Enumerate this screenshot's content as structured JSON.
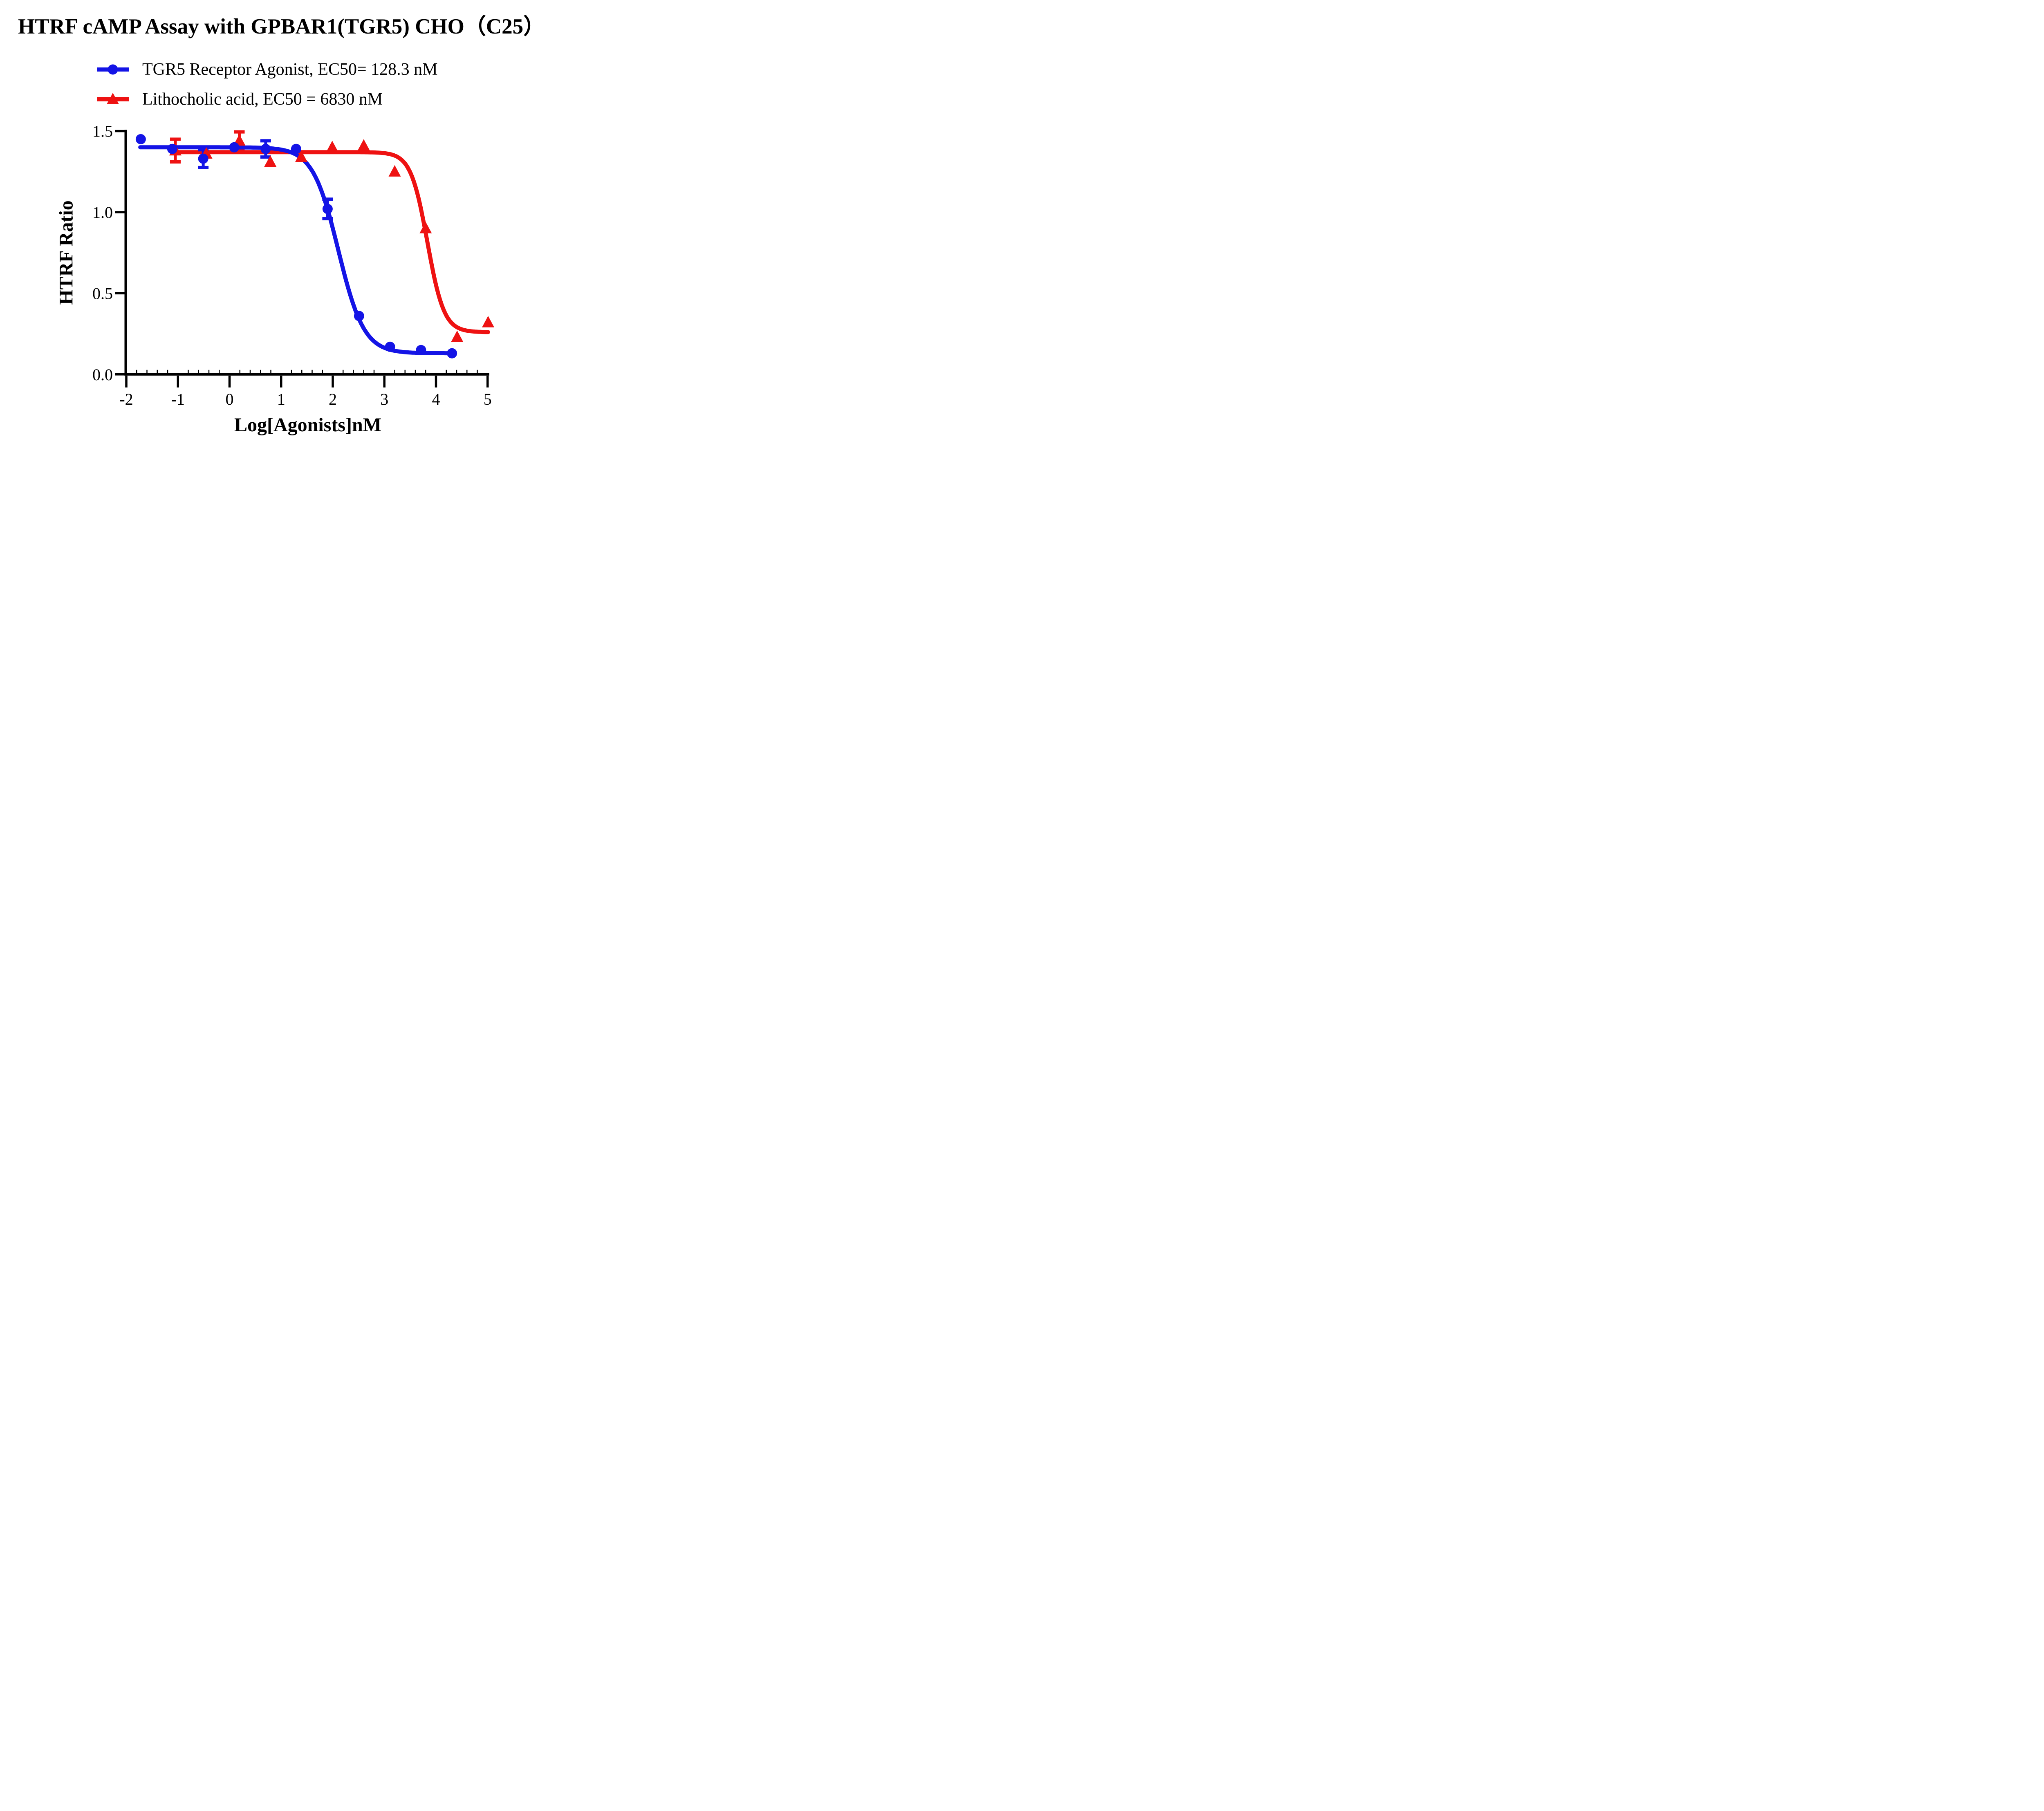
{
  "title": "HTRF cAMP Assay with GPBAR1(TGR5) CHO（C25）",
  "colors": {
    "series_blue": "#1414E6",
    "series_red": "#EE1212",
    "text": "#000000",
    "background": "#FFFFFF"
  },
  "legend": {
    "items": [
      {
        "label": "TGR5 Receptor Agonist, EC50= 128.3 nM",
        "marker": "circle",
        "color": "#1414E6"
      },
      {
        "label": "Lithocholic acid, EC50 = 6830 nM",
        "marker": "triangle",
        "color": "#EE1212"
      }
    ]
  },
  "chart_data": {
    "type": "scatter",
    "title": "HTRF cAMP Assay with GPBAR1(TGR5) CHO（C25）",
    "xlabel": "Log[Agonists]nM",
    "ylabel": "HTRF Ratio",
    "xlim": [
      -2,
      5.05
    ],
    "ylim": [
      0,
      1.5
    ],
    "grid": false,
    "legend_position": "top-left",
    "x_ticks": [
      {
        "v": -2,
        "label": "-2"
      },
      {
        "v": -1,
        "label": "-1"
      },
      {
        "v": 0,
        "label": "0"
      },
      {
        "v": 1,
        "label": "1"
      },
      {
        "v": 2,
        "label": "2"
      },
      {
        "v": 3,
        "label": "3"
      },
      {
        "v": 4,
        "label": "4"
      },
      {
        "v": 5,
        "label": "5"
      }
    ],
    "y_ticks": [
      {
        "v": 0,
        "label": "0.0"
      },
      {
        "v": 0.5,
        "label": "0.5"
      },
      {
        "v": 1,
        "label": "1.0"
      },
      {
        "v": 1.5,
        "label": "1.5"
      }
    ],
    "x_minor_tick_step": 0.2,
    "series": [
      {
        "name": "TGR5 Receptor Agonist",
        "ec50_label": "EC50= 128.3 nM",
        "ec50_nM": 128.3,
        "marker": "circle",
        "color": "#1414E6",
        "points": [
          {
            "x": -1.72,
            "y": 1.45,
            "err": 0
          },
          {
            "x": -1.11,
            "y": 1.39,
            "err": 0
          },
          {
            "x": -0.51,
            "y": 1.33,
            "err": 0.055
          },
          {
            "x": 0.09,
            "y": 1.4,
            "err": 0
          },
          {
            "x": 0.7,
            "y": 1.39,
            "err": 0.05
          },
          {
            "x": 1.29,
            "y": 1.39,
            "err": 0
          },
          {
            "x": 1.9,
            "y": 1.02,
            "err": 0.06
          },
          {
            "x": 2.51,
            "y": 0.36,
            "err": 0
          },
          {
            "x": 3.11,
            "y": 0.17,
            "err": 0
          },
          {
            "x": 3.71,
            "y": 0.15,
            "err": 0
          },
          {
            "x": 4.31,
            "y": 0.13,
            "err": 0
          }
        ],
        "fit": {
          "model": "4PL",
          "top": 1.4,
          "bottom": 0.13,
          "logEC50": 2.108,
          "hill": 1.75,
          "x_start": -1.73,
          "x_end": 4.36
        }
      },
      {
        "name": "Lithocholic acid",
        "ec50_label": "EC50 = 6830 nM",
        "ec50_nM": 6830,
        "marker": "triangle",
        "color": "#EE1212",
        "points": [
          {
            "x": -1.05,
            "y": 1.38,
            "err": 0.07
          },
          {
            "x": -0.45,
            "y": 1.36,
            "err": 0
          },
          {
            "x": 0.19,
            "y": 1.44,
            "err": 0.055
          },
          {
            "x": 0.79,
            "y": 1.31,
            "err": 0
          },
          {
            "x": 1.39,
            "y": 1.34,
            "err": 0
          },
          {
            "x": 1.99,
            "y": 1.4,
            "err": 0
          },
          {
            "x": 2.6,
            "y": 1.41,
            "err": 0
          },
          {
            "x": 3.2,
            "y": 1.25,
            "err": 0
          },
          {
            "x": 3.8,
            "y": 0.9,
            "err": 0
          },
          {
            "x": 4.41,
            "y": 0.23,
            "err": 0
          },
          {
            "x": 5.01,
            "y": 0.32,
            "err": 0
          }
        ],
        "fit": {
          "model": "4PL",
          "top": 1.37,
          "bottom": 0.26,
          "logEC50": 3.834,
          "hill": 2.7,
          "x_start": -1.02,
          "x_end": 5.02
        }
      }
    ]
  }
}
